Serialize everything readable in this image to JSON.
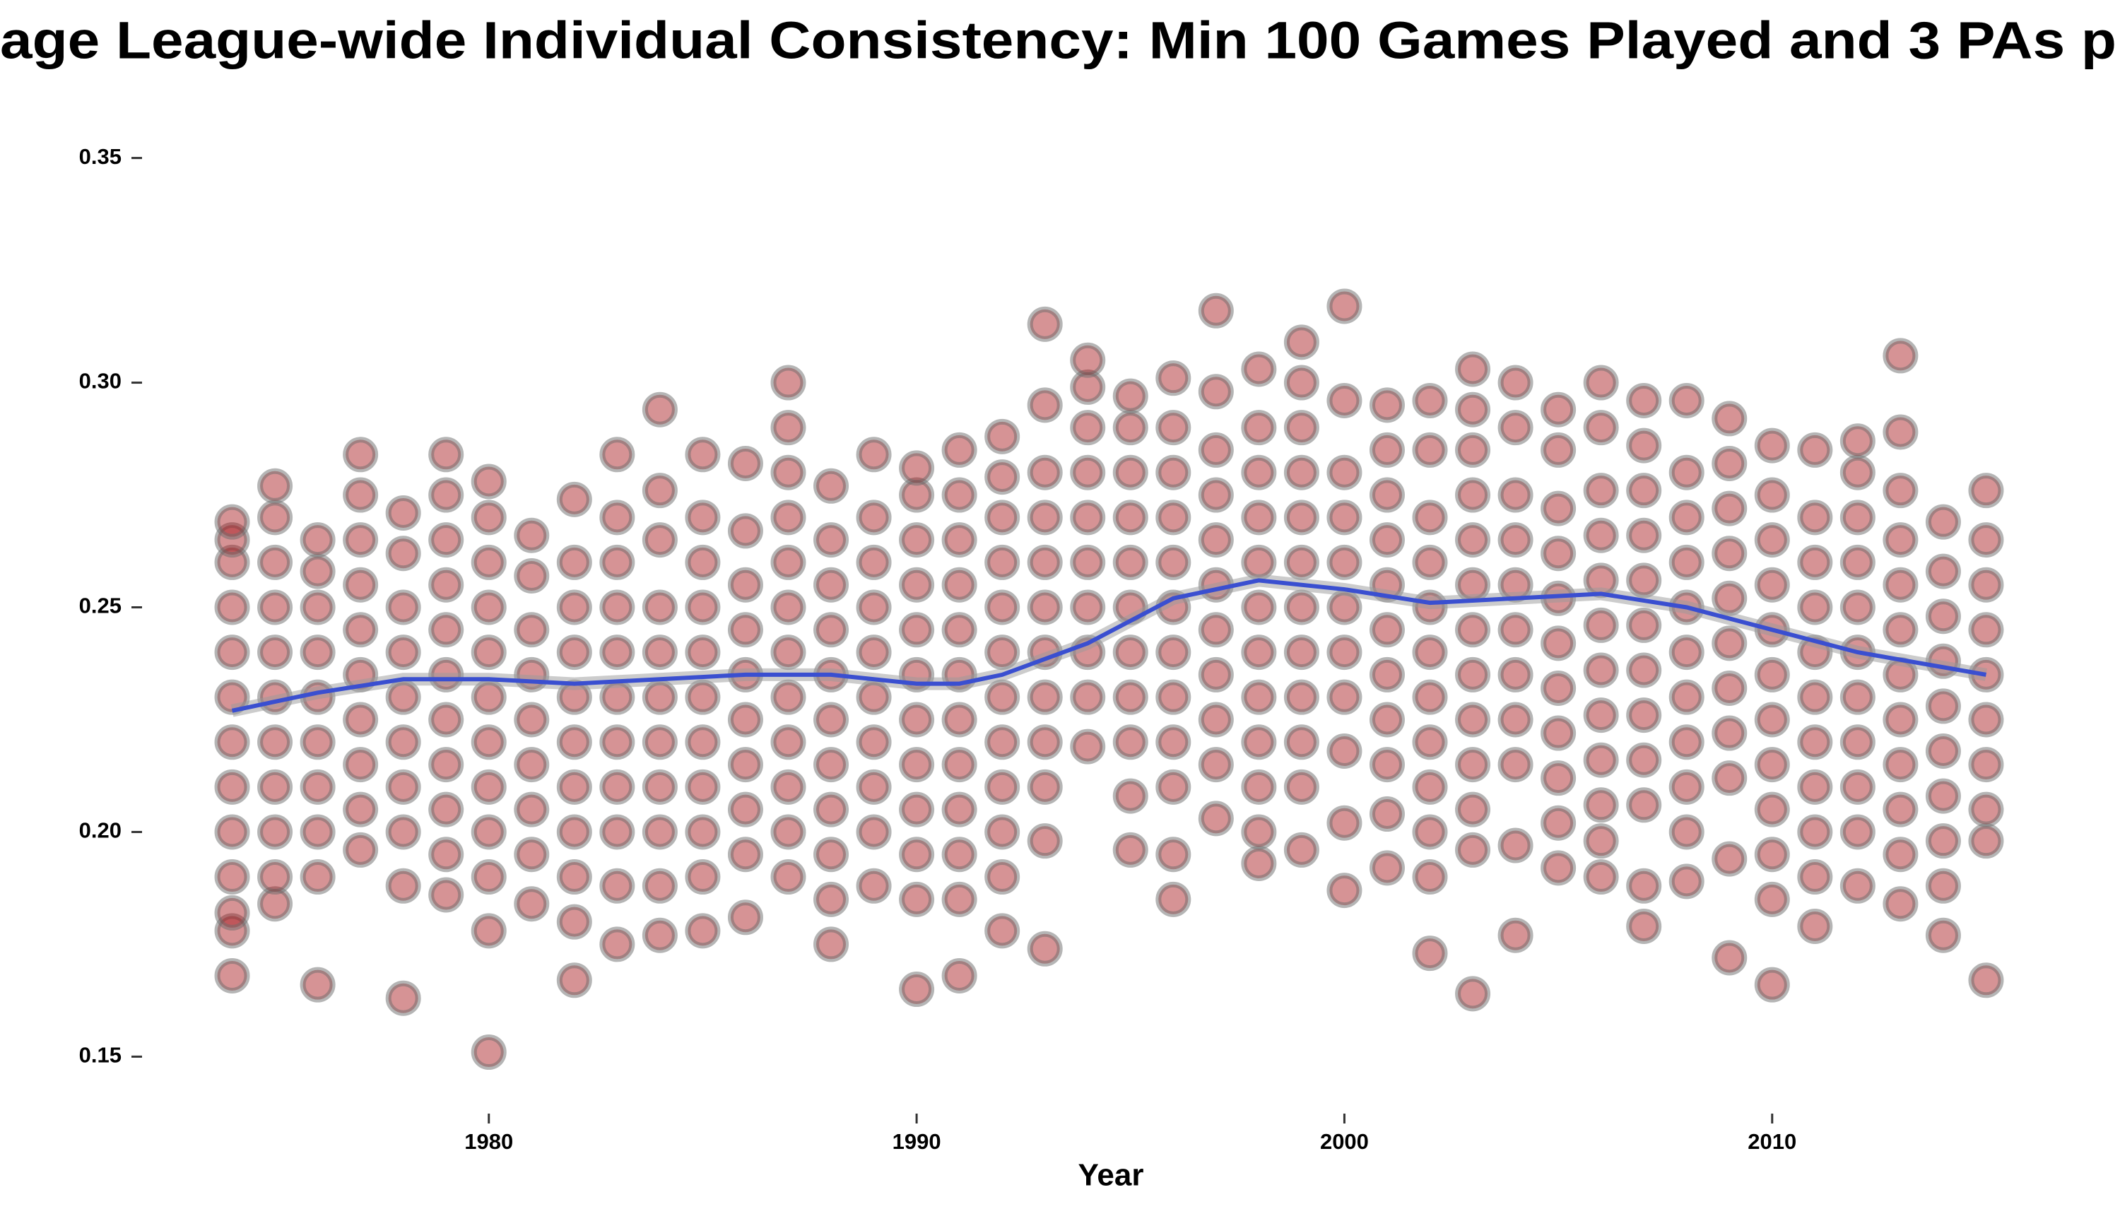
{
  "chart_data": {
    "type": "scatter",
    "title": "age League-wide Individual Consistency: Min 100 Games Played and 3 PAs p",
    "x_label": "Year",
    "xlim": [
      1973,
      2016
    ],
    "xticks": [
      1980,
      1990,
      2000,
      2010
    ],
    "ylim": [
      0.14,
      0.36
    ],
    "yticks": [
      0.15,
      {
        "value": 0.2,
        "label": "0.20"
      },
      0.25,
      {
        "value": 0.3,
        "label": "0.30"
      },
      0.35
    ],
    "color": "#a50f15",
    "trend_color": "#3a4fd0",
    "groups": [
      {
        "x": 1974,
        "values": [
          0.168,
          0.178,
          0.182,
          0.19,
          0.2,
          0.21,
          0.22,
          0.23,
          0.24,
          0.25,
          0.26,
          0.265,
          0.269
        ]
      },
      {
        "x": 1975,
        "values": [
          0.184,
          0.19,
          0.2,
          0.21,
          0.22,
          0.23,
          0.24,
          0.25,
          0.26,
          0.27,
          0.277
        ]
      },
      {
        "x": 1976,
        "values": [
          0.166,
          0.19,
          0.2,
          0.21,
          0.22,
          0.23,
          0.24,
          0.25,
          0.258,
          0.265
        ]
      },
      {
        "x": 1977,
        "values": [
          0.196,
          0.205,
          0.215,
          0.225,
          0.235,
          0.245,
          0.255,
          0.265,
          0.275,
          0.284
        ]
      },
      {
        "x": 1978,
        "values": [
          0.163,
          0.188,
          0.2,
          0.21,
          0.22,
          0.23,
          0.24,
          0.25,
          0.262,
          0.271
        ]
      },
      {
        "x": 1979,
        "values": [
          0.186,
          0.195,
          0.205,
          0.215,
          0.225,
          0.235,
          0.245,
          0.255,
          0.265,
          0.275,
          0.284
        ]
      },
      {
        "x": 1980,
        "values": [
          0.151,
          0.178,
          0.19,
          0.2,
          0.21,
          0.22,
          0.23,
          0.24,
          0.25,
          0.26,
          0.27,
          0.278
        ]
      },
      {
        "x": 1981,
        "values": [
          0.184,
          0.195,
          0.205,
          0.215,
          0.225,
          0.235,
          0.245,
          0.257,
          0.266
        ]
      },
      {
        "x": 1982,
        "values": [
          0.167,
          0.18,
          0.19,
          0.2,
          0.21,
          0.22,
          0.23,
          0.24,
          0.25,
          0.26,
          0.274
        ]
      },
      {
        "x": 1983,
        "values": [
          0.175,
          0.188,
          0.2,
          0.21,
          0.22,
          0.23,
          0.24,
          0.25,
          0.26,
          0.27,
          0.284
        ]
      },
      {
        "x": 1984,
        "values": [
          0.177,
          0.188,
          0.2,
          0.21,
          0.22,
          0.23,
          0.24,
          0.25,
          0.265,
          0.276,
          0.294
        ]
      },
      {
        "x": 1985,
        "values": [
          0.178,
          0.19,
          0.2,
          0.21,
          0.22,
          0.23,
          0.24,
          0.25,
          0.26,
          0.27,
          0.284
        ]
      },
      {
        "x": 1986,
        "values": [
          0.181,
          0.195,
          0.205,
          0.215,
          0.225,
          0.235,
          0.245,
          0.255,
          0.267,
          0.282
        ]
      },
      {
        "x": 1987,
        "values": [
          0.19,
          0.2,
          0.21,
          0.22,
          0.23,
          0.24,
          0.25,
          0.26,
          0.27,
          0.28,
          0.29,
          0.3
        ]
      },
      {
        "x": 1988,
        "values": [
          0.175,
          0.185,
          0.195,
          0.205,
          0.215,
          0.225,
          0.235,
          0.245,
          0.255,
          0.265,
          0.277
        ]
      },
      {
        "x": 1989,
        "values": [
          0.188,
          0.2,
          0.21,
          0.22,
          0.23,
          0.24,
          0.25,
          0.26,
          0.27,
          0.284
        ]
      },
      {
        "x": 1990,
        "values": [
          0.165,
          0.185,
          0.195,
          0.205,
          0.215,
          0.225,
          0.235,
          0.245,
          0.255,
          0.265,
          0.275,
          0.281
        ]
      },
      {
        "x": 1991,
        "values": [
          0.168,
          0.185,
          0.195,
          0.205,
          0.215,
          0.225,
          0.235,
          0.245,
          0.255,
          0.265,
          0.275,
          0.285
        ]
      },
      {
        "x": 1992,
        "values": [
          0.178,
          0.19,
          0.2,
          0.21,
          0.22,
          0.23,
          0.24,
          0.25,
          0.26,
          0.27,
          0.279,
          0.288
        ]
      },
      {
        "x": 1993,
        "values": [
          0.174,
          0.198,
          0.21,
          0.22,
          0.23,
          0.24,
          0.25,
          0.26,
          0.27,
          0.28,
          0.295,
          0.313
        ]
      },
      {
        "x": 1994,
        "values": [
          0.219,
          0.23,
          0.24,
          0.25,
          0.26,
          0.27,
          0.28,
          0.29,
          0.299,
          0.305
        ]
      },
      {
        "x": 1995,
        "values": [
          0.196,
          0.208,
          0.22,
          0.23,
          0.24,
          0.25,
          0.26,
          0.27,
          0.28,
          0.29,
          0.297
        ]
      },
      {
        "x": 1996,
        "values": [
          0.185,
          0.195,
          0.21,
          0.22,
          0.23,
          0.24,
          0.25,
          0.26,
          0.27,
          0.28,
          0.29,
          0.301
        ]
      },
      {
        "x": 1997,
        "values": [
          0.203,
          0.215,
          0.225,
          0.235,
          0.245,
          0.255,
          0.265,
          0.275,
          0.285,
          0.298,
          0.316
        ]
      },
      {
        "x": 1998,
        "values": [
          0.193,
          0.2,
          0.21,
          0.22,
          0.23,
          0.24,
          0.25,
          0.26,
          0.27,
          0.28,
          0.29,
          0.303
        ]
      },
      {
        "x": 1999,
        "values": [
          0.196,
          0.21,
          0.22,
          0.23,
          0.24,
          0.25,
          0.26,
          0.27,
          0.28,
          0.29,
          0.3,
          0.309
        ]
      },
      {
        "x": 2000,
        "values": [
          0.187,
          0.202,
          0.218,
          0.23,
          0.24,
          0.25,
          0.26,
          0.27,
          0.28,
          0.296,
          0.317
        ]
      },
      {
        "x": 2001,
        "values": [
          0.192,
          0.204,
          0.215,
          0.225,
          0.235,
          0.245,
          0.255,
          0.265,
          0.275,
          0.285,
          0.295
        ]
      },
      {
        "x": 2002,
        "values": [
          0.173,
          0.19,
          0.2,
          0.21,
          0.22,
          0.23,
          0.24,
          0.25,
          0.26,
          0.27,
          0.285,
          0.296
        ]
      },
      {
        "x": 2003,
        "values": [
          0.164,
          0.196,
          0.205,
          0.215,
          0.225,
          0.235,
          0.245,
          0.255,
          0.265,
          0.275,
          0.285,
          0.294,
          0.303
        ]
      },
      {
        "x": 2004,
        "values": [
          0.177,
          0.197,
          0.215,
          0.225,
          0.235,
          0.245,
          0.255,
          0.265,
          0.275,
          0.29,
          0.3
        ]
      },
      {
        "x": 2005,
        "values": [
          0.192,
          0.202,
          0.212,
          0.222,
          0.232,
          0.242,
          0.252,
          0.262,
          0.272,
          0.285,
          0.294
        ]
      },
      {
        "x": 2006,
        "values": [
          0.19,
          0.198,
          0.206,
          0.216,
          0.226,
          0.236,
          0.246,
          0.256,
          0.266,
          0.276,
          0.29,
          0.3
        ]
      },
      {
        "x": 2007,
        "values": [
          0.179,
          0.188,
          0.206,
          0.216,
          0.226,
          0.236,
          0.246,
          0.256,
          0.266,
          0.276,
          0.286,
          0.296
        ]
      },
      {
        "x": 2008,
        "values": [
          0.189,
          0.2,
          0.21,
          0.22,
          0.23,
          0.24,
          0.25,
          0.26,
          0.27,
          0.28,
          0.296
        ]
      },
      {
        "x": 2009,
        "values": [
          0.172,
          0.194,
          0.212,
          0.222,
          0.232,
          0.242,
          0.252,
          0.262,
          0.272,
          0.282,
          0.292
        ]
      },
      {
        "x": 2010,
        "values": [
          0.166,
          0.185,
          0.195,
          0.205,
          0.215,
          0.225,
          0.235,
          0.245,
          0.255,
          0.265,
          0.275,
          0.286
        ]
      },
      {
        "x": 2011,
        "values": [
          0.179,
          0.19,
          0.2,
          0.21,
          0.22,
          0.23,
          0.24,
          0.25,
          0.26,
          0.27,
          0.285
        ]
      },
      {
        "x": 2012,
        "values": [
          0.188,
          0.2,
          0.21,
          0.22,
          0.23,
          0.24,
          0.25,
          0.26,
          0.27,
          0.28,
          0.287
        ]
      },
      {
        "x": 2013,
        "values": [
          0.184,
          0.195,
          0.205,
          0.215,
          0.225,
          0.235,
          0.245,
          0.255,
          0.265,
          0.276,
          0.289,
          0.306
        ]
      },
      {
        "x": 2014,
        "values": [
          0.177,
          0.188,
          0.198,
          0.208,
          0.218,
          0.228,
          0.238,
          0.248,
          0.258,
          0.269
        ]
      },
      {
        "x": 2015,
        "values": [
          0.167,
          0.198,
          0.205,
          0.215,
          0.225,
          0.235,
          0.245,
          0.255,
          0.265,
          0.276
        ]
      }
    ],
    "trend": {
      "x": [
        1974,
        1976,
        1978,
        1980,
        1982,
        1984,
        1986,
        1988,
        1990,
        1991,
        1992,
        1994,
        1996,
        1998,
        2000,
        2002,
        2004,
        2006,
        2008,
        2010,
        2012,
        2015
      ],
      "values": [
        0.227,
        0.231,
        0.234,
        0.234,
        0.233,
        0.234,
        0.235,
        0.235,
        0.233,
        0.233,
        0.235,
        0.242,
        0.252,
        0.256,
        0.254,
        0.251,
        0.252,
        0.253,
        0.25,
        0.245,
        0.24,
        0.235
      ]
    }
  }
}
